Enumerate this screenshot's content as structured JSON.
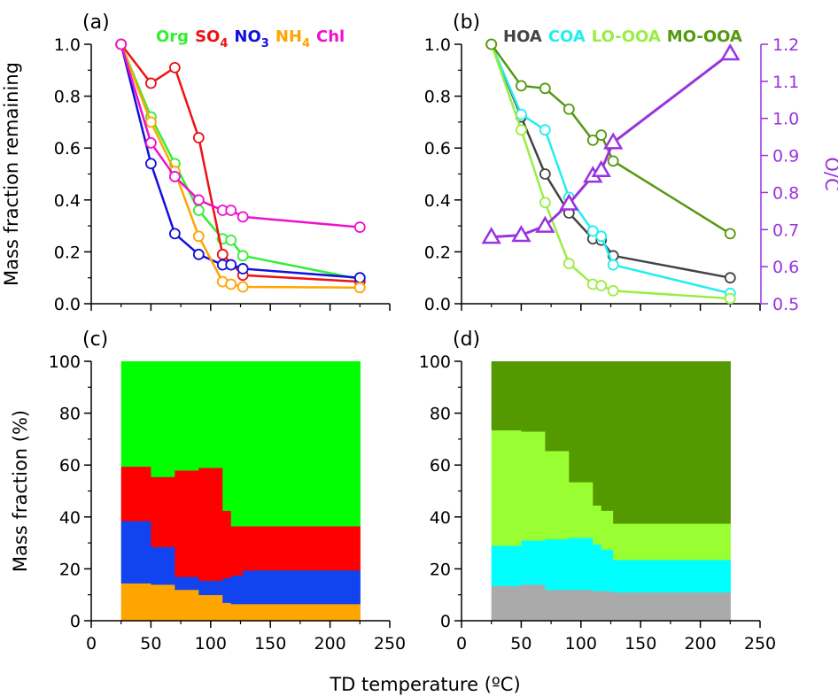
{
  "chart_data": [
    {
      "panel": "(a)",
      "type": "line",
      "ylabel": "Mass fraction remaining",
      "xlim": [
        0,
        250
      ],
      "ylim": [
        0,
        1.0
      ],
      "yticks": [
        "0.0",
        "0.2",
        "0.4",
        "0.6",
        "0.8",
        "1.0"
      ],
      "x": [
        25,
        50,
        70,
        90,
        110,
        117,
        127,
        225
      ],
      "series": [
        {
          "name": "Org",
          "color": "#33ee33",
          "values": [
            1.0,
            0.72,
            0.54,
            0.36,
            0.25,
            0.245,
            0.185,
            0.095
          ]
        },
        {
          "name": "SO4",
          "name_main": "SO",
          "name_sub": "4",
          "color": "#ee1111",
          "values": [
            1.0,
            0.85,
            0.91,
            0.64,
            0.19,
            null,
            0.11,
            0.085
          ]
        },
        {
          "name": "NO3",
          "name_main": "NO",
          "name_sub": "3",
          "color": "#1111dd",
          "values": [
            1.0,
            0.54,
            0.27,
            0.19,
            0.15,
            0.15,
            0.135,
            0.1
          ]
        },
        {
          "name": "NH4",
          "name_main": "NH",
          "name_sub": "4",
          "color": "#ffa500",
          "values": [
            1.0,
            0.7,
            0.51,
            0.26,
            0.085,
            0.075,
            0.065,
            0.062
          ]
        },
        {
          "name": "Chl",
          "color": "#ee11cc",
          "values": [
            1.0,
            0.62,
            0.49,
            0.4,
            0.36,
            0.36,
            0.335,
            0.295
          ]
        }
      ]
    },
    {
      "panel": "(b)",
      "type": "line",
      "xlim": [
        0,
        250
      ],
      "ylim": [
        0,
        1.0
      ],
      "yticks": [
        "0.0",
        "0.2",
        "0.4",
        "0.6",
        "0.8",
        "1.0"
      ],
      "y2label": "O/C",
      "y2lim": [
        0.5,
        1.2
      ],
      "y2ticks": [
        "0.5",
        "0.6",
        "0.7",
        "0.8",
        "0.9",
        "1.0",
        "1.1",
        "1.2"
      ],
      "y2color": "#9933dd",
      "x": [
        25,
        50,
        70,
        90,
        110,
        117,
        127,
        225
      ],
      "series": [
        {
          "name": "HOA",
          "color": "#444444",
          "values": [
            1.0,
            0.72,
            0.5,
            0.35,
            0.25,
            0.245,
            0.185,
            0.1
          ]
        },
        {
          "name": "COA",
          "color": "#22eeee",
          "values": [
            1.0,
            0.73,
            0.67,
            0.41,
            0.28,
            0.26,
            0.15,
            0.04
          ]
        },
        {
          "name": "LO-OOA",
          "color": "#99ee44",
          "values": [
            1.0,
            0.67,
            0.39,
            0.155,
            0.075,
            0.07,
            0.05,
            0.02
          ]
        },
        {
          "name": "MO-OOA",
          "color": "#559911",
          "values": [
            1.0,
            0.84,
            0.83,
            0.75,
            0.63,
            0.65,
            0.55,
            0.27
          ]
        }
      ],
      "oc": {
        "x": [
          25,
          50,
          70,
          90,
          110,
          117,
          127,
          225
        ],
        "values": [
          0.68,
          0.685,
          0.71,
          0.77,
          0.845,
          0.86,
          0.935,
          1.175
        ]
      }
    },
    {
      "panel": "(c)",
      "type": "area",
      "ylabel": "Mass fraction (%)",
      "xlim": [
        0,
        250
      ],
      "ylim": [
        0,
        100
      ],
      "yticks": [
        "0",
        "20",
        "40",
        "60",
        "80",
        "100"
      ],
      "steps": [
        25,
        50,
        70,
        90,
        110,
        117,
        127,
        225
      ],
      "stack": [
        {
          "name": "NH4",
          "color": "#ffa500",
          "values": [
            14.5,
            14,
            12,
            10,
            7,
            6.5,
            6.5,
            6.5
          ]
        },
        {
          "name": "NO3",
          "color": "#1144ee",
          "values": [
            24,
            14.5,
            5,
            5.5,
            9.5,
            11,
            13,
            13
          ]
        },
        {
          "name": "SO4",
          "color": "#ff0000",
          "values": [
            21,
            27,
            41,
            43.5,
            26,
            19,
            17,
            17
          ]
        },
        {
          "name": "Org",
          "color": "#00ff00",
          "values": [
            40.5,
            44.5,
            42,
            41,
            57.5,
            63.5,
            63.5,
            63.5
          ]
        }
      ]
    },
    {
      "panel": "(d)",
      "type": "area",
      "xlim": [
        0,
        250
      ],
      "ylim": [
        0,
        100
      ],
      "yticks": [
        "0",
        "20",
        "40",
        "60",
        "80",
        "100"
      ],
      "steps": [
        25,
        50,
        70,
        90,
        110,
        117,
        127,
        225
      ],
      "stack": [
        {
          "name": "HOA",
          "color": "#aaaaaa",
          "values": [
            13.5,
            14,
            12,
            12,
            11.5,
            11.5,
            11,
            11
          ]
        },
        {
          "name": "COA",
          "color": "#00ffff",
          "values": [
            15.5,
            17,
            19.5,
            20,
            18,
            16,
            12.5,
            12.5
          ]
        },
        {
          "name": "LO-OOA",
          "color": "#99ff33",
          "values": [
            44.5,
            42,
            34,
            21.5,
            15,
            15,
            14,
            14
          ]
        },
        {
          "name": "MO-OOA",
          "color": "#559900",
          "values": [
            26.5,
            27,
            34.5,
            46.5,
            55.5,
            57.5,
            62.5,
            62.5
          ]
        }
      ]
    }
  ],
  "xticks": [
    "0",
    "50",
    "100",
    "150",
    "200",
    "250"
  ],
  "xlabel": "TD temperature (ºC)"
}
